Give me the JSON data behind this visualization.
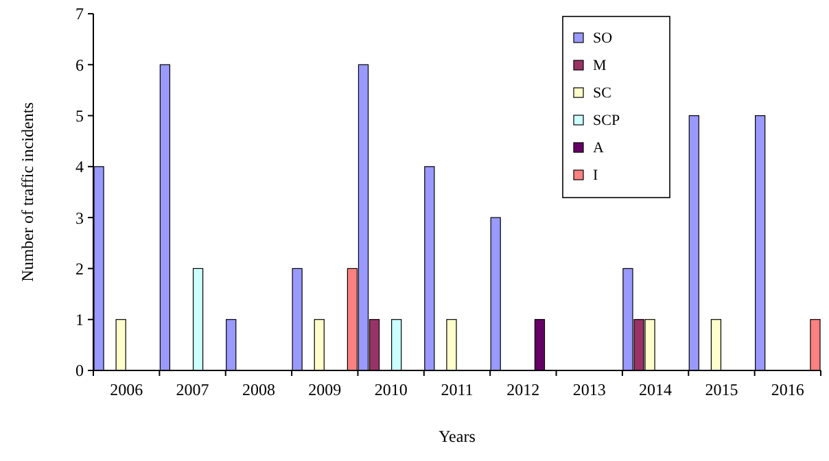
{
  "chart_data": {
    "type": "bar",
    "xlabel": "Years",
    "ylabel": "Number of traffic incidents",
    "categories": [
      "2006",
      "2007",
      "2008",
      "2009",
      "2010",
      "2011",
      "2012",
      "2013",
      "2014",
      "2015",
      "2016"
    ],
    "series": [
      {
        "name": "SO",
        "color": "#9999ff",
        "values": [
          4,
          6,
          1,
          2,
          6,
          4,
          3,
          0,
          2,
          5,
          5
        ]
      },
      {
        "name": "M",
        "color": "#993366",
        "values": [
          0,
          0,
          0,
          0,
          1,
          0,
          0,
          0,
          1,
          0,
          0
        ]
      },
      {
        "name": "SC",
        "color": "#ffffcc",
        "values": [
          1,
          0,
          0,
          1,
          0,
          1,
          0,
          0,
          1,
          1,
          0
        ]
      },
      {
        "name": "SCP",
        "color": "#ccffff",
        "values": [
          0,
          2,
          0,
          0,
          1,
          0,
          0,
          0,
          0,
          0,
          0
        ]
      },
      {
        "name": "A",
        "color": "#660066",
        "values": [
          0,
          0,
          0,
          0,
          0,
          0,
          1,
          0,
          0,
          0,
          0
        ]
      },
      {
        "name": "I",
        "color": "#ff8080",
        "values": [
          0,
          0,
          0,
          2,
          0,
          0,
          0,
          0,
          0,
          0,
          1
        ]
      }
    ],
    "ylim": [
      0,
      7
    ],
    "yticks": [
      0,
      1,
      2,
      3,
      4,
      5,
      6,
      7
    ],
    "grid": false,
    "legend": "top right"
  }
}
